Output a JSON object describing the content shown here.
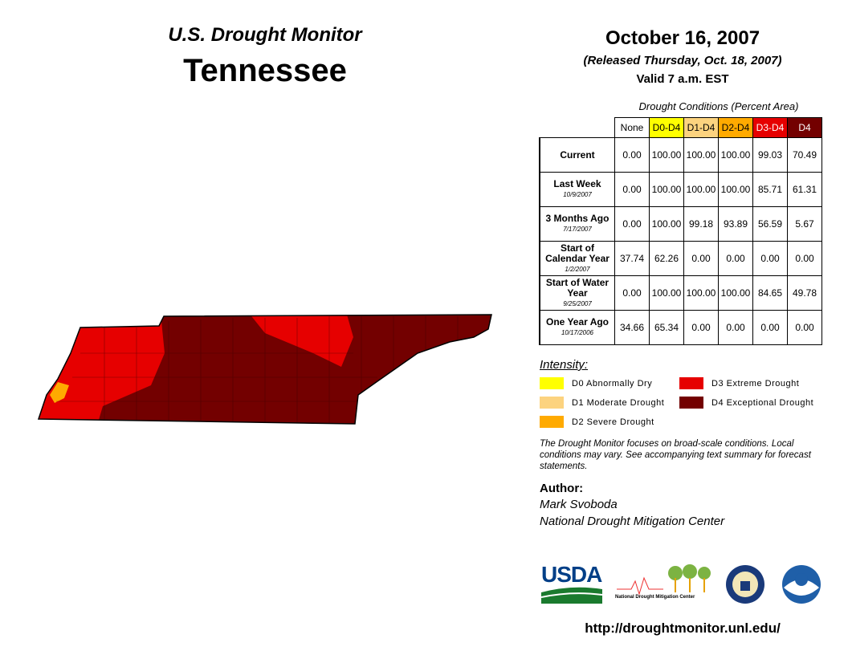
{
  "header": {
    "program": "U.S. Drought Monitor",
    "state": "Tennessee",
    "date": "October 16, 2007",
    "released": "(Released Thursday, Oct. 18, 2007)",
    "valid": "Valid 7 a.m. EST"
  },
  "table": {
    "caption": "Drought Conditions (Percent Area)",
    "columns": [
      {
        "label": "None",
        "color": "#ffffff",
        "text": "#000000"
      },
      {
        "label": "D0-D4",
        "color": "#ffff00",
        "text": "#000000"
      },
      {
        "label": "D1-D4",
        "color": "#fcd37f",
        "text": "#000000"
      },
      {
        "label": "D2-D4",
        "color": "#ffaa00",
        "text": "#000000"
      },
      {
        "label": "D3-D4",
        "color": "#e60000",
        "text": "#ffffff"
      },
      {
        "label": "D4",
        "color": "#730000",
        "text": "#ffffff"
      }
    ],
    "rows": [
      {
        "label": "Current",
        "values": [
          "0.00",
          "100.00",
          "100.00",
          "100.00",
          "99.03",
          "70.49"
        ]
      },
      {
        "label": "Last Week",
        "date": "10/9/2007",
        "values": [
          "0.00",
          "100.00",
          "100.00",
          "100.00",
          "85.71",
          "61.31"
        ]
      },
      {
        "label": "3 Months Ago",
        "date": "7/17/2007",
        "values": [
          "0.00",
          "100.00",
          "99.18",
          "93.89",
          "56.59",
          "5.67"
        ]
      },
      {
        "label": "Start of Calendar Year",
        "date": "1/2/2007",
        "values": [
          "37.74",
          "62.26",
          "0.00",
          "0.00",
          "0.00",
          "0.00"
        ]
      },
      {
        "label": "Start of Water Year",
        "date": "9/25/2007",
        "values": [
          "0.00",
          "100.00",
          "100.00",
          "100.00",
          "84.65",
          "49.78"
        ]
      },
      {
        "label": "One Year Ago",
        "date": "10/17/2006",
        "values": [
          "34.66",
          "65.34",
          "0.00",
          "0.00",
          "0.00",
          "0.00"
        ]
      }
    ]
  },
  "legend": {
    "title": "Intensity:",
    "items": [
      {
        "label": "D0 Abnormally Dry",
        "color": "#ffff00"
      },
      {
        "label": "D1 Moderate Drought",
        "color": "#fcd37f"
      },
      {
        "label": "D2 Severe Drought",
        "color": "#ffaa00"
      },
      {
        "label": "D3 Extreme Drought",
        "color": "#e60000"
      },
      {
        "label": "D4 Exceptional Drought",
        "color": "#730000"
      }
    ]
  },
  "note": "The Drought Monitor focuses on broad-scale conditions. Local conditions may vary. See accompanying text summary for forecast statements.",
  "author": {
    "title": "Author:",
    "name": "Mark Svoboda",
    "org": "National Drought Mitigation Center"
  },
  "logos": {
    "usda": "USDA",
    "ndmc": "National Drought Mitigation Center"
  },
  "url": "http://droughtmonitor.unl.edu/"
}
